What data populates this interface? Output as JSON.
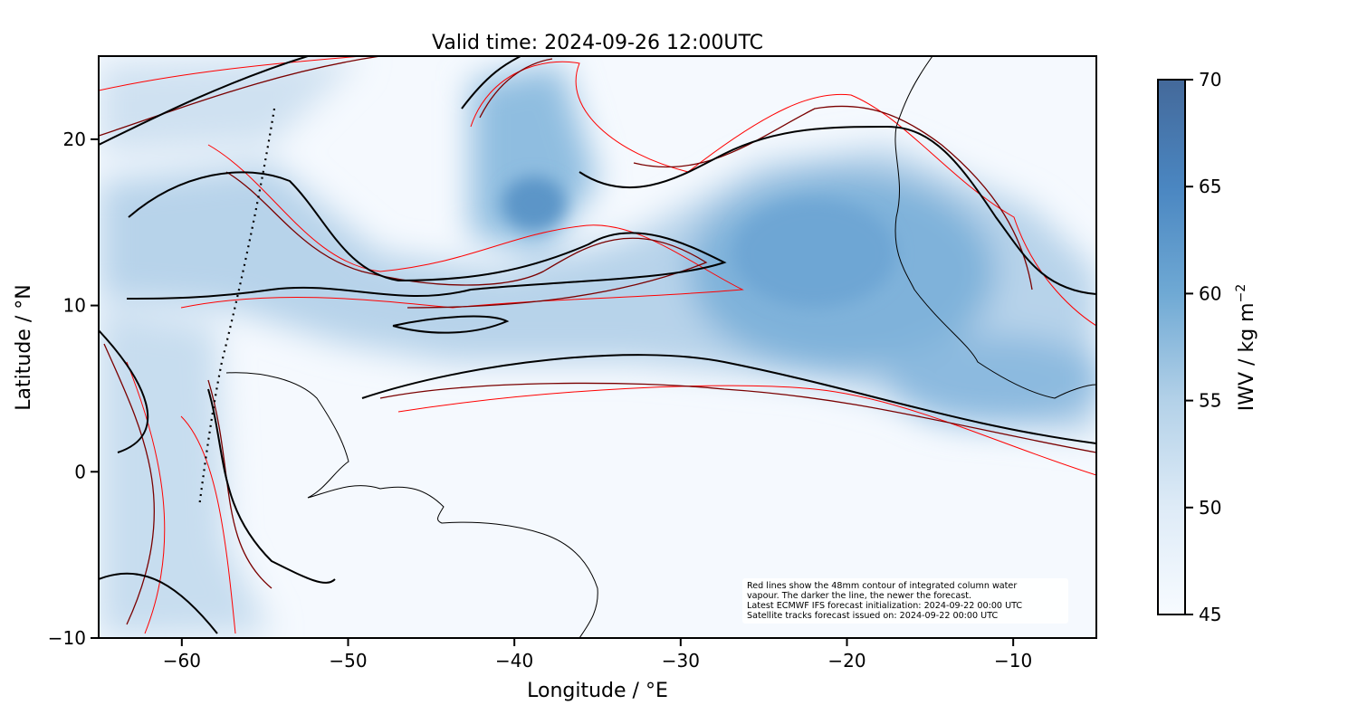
{
  "title": "Valid time: 2024-09-26 12:00UTC",
  "chart_data": {
    "type": "heatmap",
    "title": "Valid time: 2024-09-26 12:00UTC",
    "xlabel": "Longitude / °E",
    "ylabel": "Latitude / °N",
    "xlim": [
      -65,
      -5
    ],
    "ylim": [
      -10,
      25
    ],
    "xticks": [
      -60,
      -50,
      -40,
      -30,
      -20,
      -10
    ],
    "yticks": [
      -10,
      0,
      10,
      20
    ],
    "xtick_labels": [
      "−60",
      "−50",
      "−40",
      "−30",
      "−20",
      "−10"
    ],
    "ytick_labels": [
      "−10",
      "0",
      "10",
      "20"
    ],
    "colorbar": {
      "label": "IWV / kg m",
      "label_superscript": "−2",
      "range": [
        45,
        70
      ],
      "ticks": [
        "45",
        "50",
        "55",
        "60",
        "65",
        "70"
      ],
      "colormap": "Blues",
      "colors": [
        "#f7fbff",
        "#c6dbef",
        "#6baed6",
        "#4a7fb5",
        "#44699a"
      ]
    },
    "contour_level_mm": 48,
    "contour_colors": {
      "newest": "#000000",
      "older": "#7a0000",
      "oldest": "#ff0000"
    },
    "satellite_track_style": "dotted"
  },
  "note": {
    "line1": "Red lines show the 48mm contour of integrated column water",
    "line2": "vapour. The darker the line, the newer the forecast.",
    "line3": "Latest ECMWF IFS forecast initialization: 2024-09-22 00:00 UTC",
    "line4": "Satellite tracks forecast issued on: 2024-09-22 00:00 UTC"
  }
}
